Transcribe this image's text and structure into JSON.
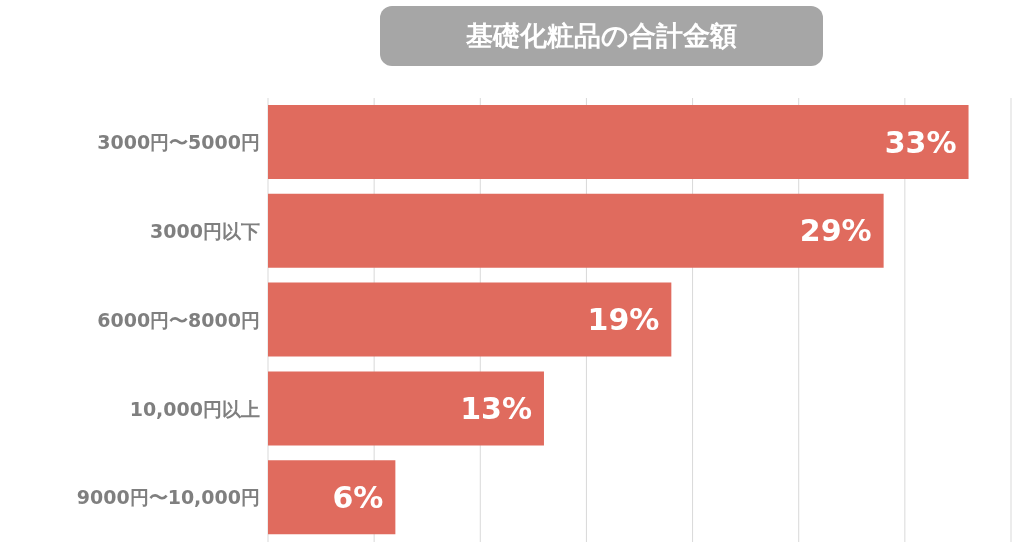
{
  "chart_data": {
    "type": "bar",
    "orientation": "horizontal",
    "title": "基礎化粧品の合計金額",
    "categories": [
      "3000円〜5000円",
      "3000円以下",
      "6000円〜8000円",
      "10,000円以上",
      "9000円〜10,000円"
    ],
    "values": [
      33,
      29,
      19,
      13,
      6
    ],
    "value_labels": [
      "33%",
      "29%",
      "19%",
      "13%",
      "6%"
    ],
    "color": "#e06b5e",
    "xlim": [
      0,
      35
    ],
    "xticks": [
      {
        "value": 0,
        "label": null
      },
      {
        "value": 5,
        "label": null
      },
      {
        "value": 10,
        "label": null
      },
      {
        "value": 15,
        "label": null
      },
      {
        "value": 20,
        "label": null
      },
      {
        "value": 25,
        "label": null
      },
      {
        "value": 30,
        "label": null
      },
      {
        "value": 35,
        "label": null
      }
    ],
    "grid": "x",
    "tick_labels": "y",
    "legend": false
  }
}
